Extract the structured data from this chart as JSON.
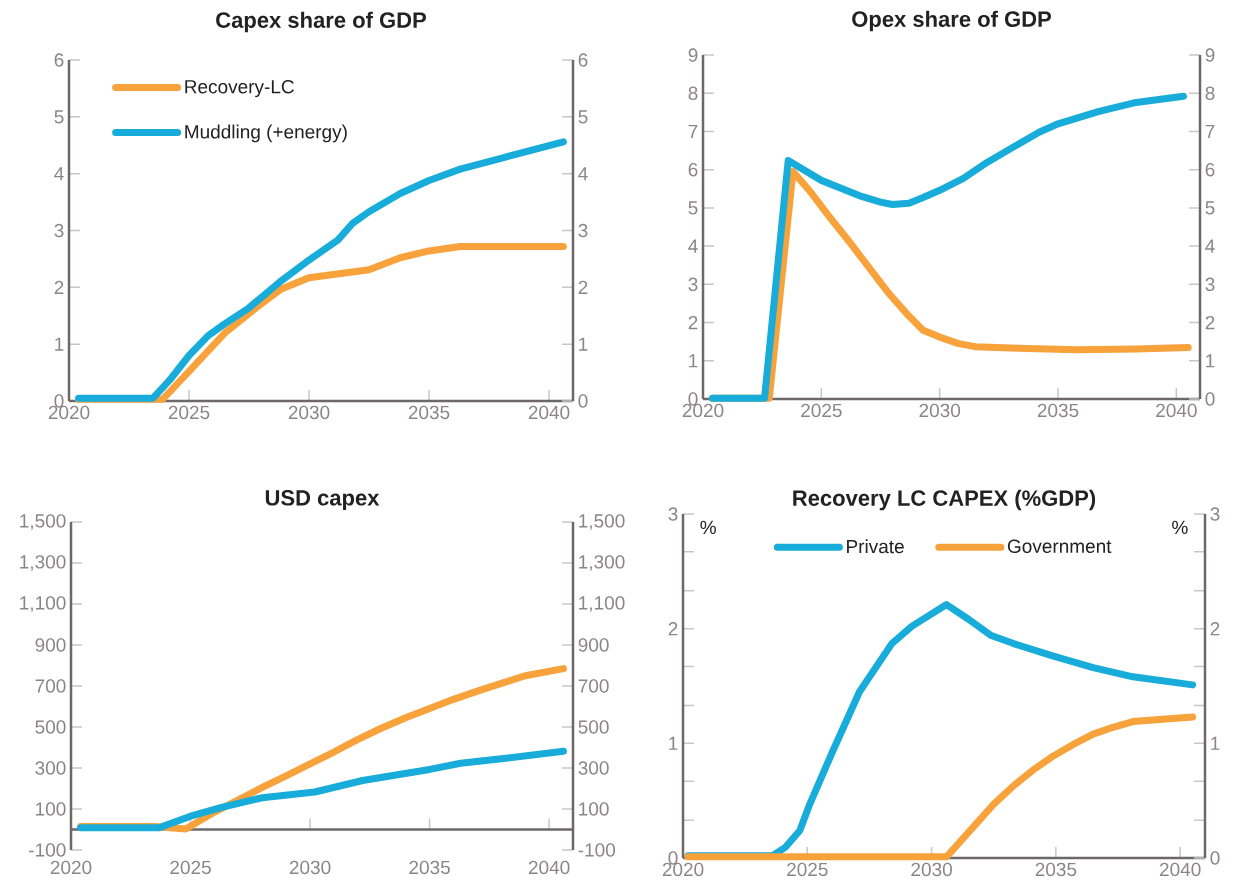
{
  "chart_data": [
    {
      "type": "line",
      "title": "Capex share of GDP",
      "xlim": [
        2020,
        2041
      ],
      "xticks": [
        2020,
        2025,
        2030,
        2035,
        2040
      ],
      "ylim": [
        0,
        6
      ],
      "yticks": [
        0,
        1,
        2,
        3,
        4,
        5,
        6
      ],
      "y2lim": [
        0,
        6
      ],
      "y2ticks": [
        0,
        1,
        2,
        3,
        4,
        5,
        6
      ],
      "legend": "top left",
      "series": [
        {
          "name": "Recovery-LC",
          "color": "#f8a23b",
          "x": [
            2020.4,
            2023.9,
            2025,
            2026.5,
            2027.8,
            2028.8,
            2030,
            2032.5,
            2033.8,
            2035,
            2036.3,
            2040.6
          ],
          "values": [
            0.03,
            0.03,
            0.52,
            1.2,
            1.64,
            1.96,
            2.17,
            2.31,
            2.52,
            2.64,
            2.72,
            2.72
          ]
        },
        {
          "name": "Muddling (+energy)",
          "color": "#17acd9",
          "x": [
            2020.4,
            2023.5,
            2024.2,
            2025,
            2025.8,
            2026.5,
            2027.5,
            2028.8,
            2030,
            2031.2,
            2031.8,
            2032.5,
            2033.8,
            2035,
            2036.3,
            2038,
            2040.6
          ],
          "values": [
            0.05,
            0.05,
            0.37,
            0.8,
            1.15,
            1.36,
            1.64,
            2.1,
            2.48,
            2.83,
            3.12,
            3.33,
            3.65,
            3.88,
            4.08,
            4.27,
            4.56
          ]
        }
      ]
    },
    {
      "type": "line",
      "title": "Opex share of GDP",
      "xlim": [
        2020,
        2041
      ],
      "xticks": [
        2020,
        2025,
        2030,
        2035,
        2040
      ],
      "ylim": [
        0,
        9
      ],
      "yticks": [
        0,
        1,
        2,
        3,
        4,
        5,
        6,
        7,
        8,
        9
      ],
      "y2lim": [
        0,
        9
      ],
      "y2ticks": [
        0,
        1,
        2,
        3,
        4,
        5,
        6,
        7,
        8,
        9
      ],
      "series": [
        {
          "color": "#f8a23b",
          "x": [
            2020.4,
            2022.8,
            2023.8,
            2024.5,
            2025.3,
            2026.2,
            2027,
            2027.8,
            2028.7,
            2029.3,
            2030,
            2030.8,
            2031.5,
            2033.3,
            2035.8,
            2038.3,
            2040.5
          ],
          "values": [
            0.02,
            0.02,
            5.95,
            5.45,
            4.8,
            4.1,
            3.45,
            2.8,
            2.17,
            1.8,
            1.62,
            1.45,
            1.37,
            1.33,
            1.29,
            1.31,
            1.35
          ]
        },
        {
          "color": "#17acd9",
          "x": [
            2020.4,
            2022.6,
            2023.6,
            2025,
            2026.7,
            2027.5,
            2028,
            2028.7,
            2029.3,
            2030,
            2031,
            2032,
            2033.3,
            2034.2,
            2035,
            2036.7,
            2038.3,
            2040.3
          ],
          "values": [
            0.02,
            0.02,
            6.24,
            5.72,
            5.3,
            5.15,
            5.09,
            5.12,
            5.27,
            5.46,
            5.77,
            6.19,
            6.66,
            6.98,
            7.2,
            7.52,
            7.76,
            7.92
          ]
        }
      ]
    },
    {
      "type": "line",
      "title": "USD capex",
      "xlim": [
        2020,
        2041
      ],
      "xticks": [
        2020,
        2025,
        2030,
        2035,
        2040
      ],
      "ylim": [
        -100,
        1500
      ],
      "yticks": [
        -100,
        100,
        300,
        500,
        700,
        900,
        {
          "value": 1100,
          "label": "1,100"
        },
        {
          "value": 1300,
          "label": "1,300"
        },
        {
          "value": 1500,
          "label": "1,500"
        }
      ],
      "y2lim": [
        -100,
        1500
      ],
      "y2ticks": [
        -100,
        100,
        300,
        500,
        700,
        900,
        {
          "value": 1100,
          "label": "1,100"
        },
        {
          "value": 1300,
          "label": "1,300"
        },
        {
          "value": 1500,
          "label": "1,500"
        }
      ],
      "series": [
        {
          "color": "#f8a23b",
          "x": [
            2020.4,
            2023.5,
            2024.8,
            2026,
            2027,
            2028,
            2029,
            2030,
            2031,
            2032,
            2033,
            2034,
            2035,
            2036,
            2037,
            2038,
            2039,
            2040.6
          ],
          "values": [
            15,
            15,
            2,
            85,
            145,
            205,
            262,
            320,
            378,
            440,
            495,
            545,
            590,
            635,
            675,
            713,
            750,
            785
          ]
        },
        {
          "color": "#17acd9",
          "x": [
            2020.4,
            2023.7,
            2025,
            2026.3,
            2028,
            2030.2,
            2032.2,
            2035,
            2036.3,
            2038,
            2040.6
          ],
          "values": [
            9,
            9,
            65,
            108,
            155,
            183,
            239,
            293,
            323,
            345,
            382
          ]
        }
      ]
    },
    {
      "type": "line",
      "title": "Recovery LC CAPEX (%GDP)",
      "ylabel": "%",
      "y2label": "%",
      "xlim": [
        2020,
        2041
      ],
      "xticks": [
        2020,
        2025,
        2030,
        2035,
        2040
      ],
      "ylim": [
        0,
        3
      ],
      "yticks": [
        0,
        {
          "value": 0.33,
          "label": null
        },
        {
          "value": 0.67,
          "label": null
        },
        1,
        {
          "value": 1.33,
          "label": null
        },
        {
          "value": 1.67,
          "label": null
        },
        2,
        {
          "value": 2.33,
          "label": null
        },
        {
          "value": 2.67,
          "label": null
        },
        3
      ],
      "y2lim": [
        0,
        3
      ],
      "y2ticks": [
        0,
        {
          "value": 0.33,
          "label": null
        },
        {
          "value": 0.67,
          "label": null
        },
        1,
        {
          "value": 1.33,
          "label": null
        },
        {
          "value": 1.67,
          "label": null
        },
        2,
        {
          "value": 2.33,
          "label": null
        },
        {
          "value": 2.67,
          "label": null
        },
        3
      ],
      "legend": "top",
      "series": [
        {
          "name": "Private",
          "color": "#17acd9",
          "x": [
            2020.2,
            2023.6,
            2024.1,
            2024.7,
            2025.1,
            2026,
            2027.1,
            2028.4,
            2029.2,
            2030.6,
            2031.5,
            2032.4,
            2033.3,
            2034.9,
            2036.5,
            2038.1,
            2040.5
          ],
          "values": [
            0.02,
            0.02,
            0.09,
            0.24,
            0.47,
            0.92,
            1.45,
            1.87,
            2.02,
            2.21,
            2.08,
            1.94,
            1.87,
            1.76,
            1.66,
            1.58,
            1.51
          ]
        },
        {
          "name": "Government",
          "color": "#f8a23b",
          "x": [
            2020.2,
            2030.6,
            2031.8,
            2032.5,
            2033.3,
            2034.1,
            2034.9,
            2035.7,
            2036.5,
            2037.3,
            2038.1,
            2039.3,
            2040.5
          ],
          "values": [
            0.01,
            0.01,
            0.3,
            0.47,
            0.63,
            0.77,
            0.89,
            0.99,
            1.08,
            1.14,
            1.19,
            1.21,
            1.23
          ]
        }
      ]
    }
  ]
}
